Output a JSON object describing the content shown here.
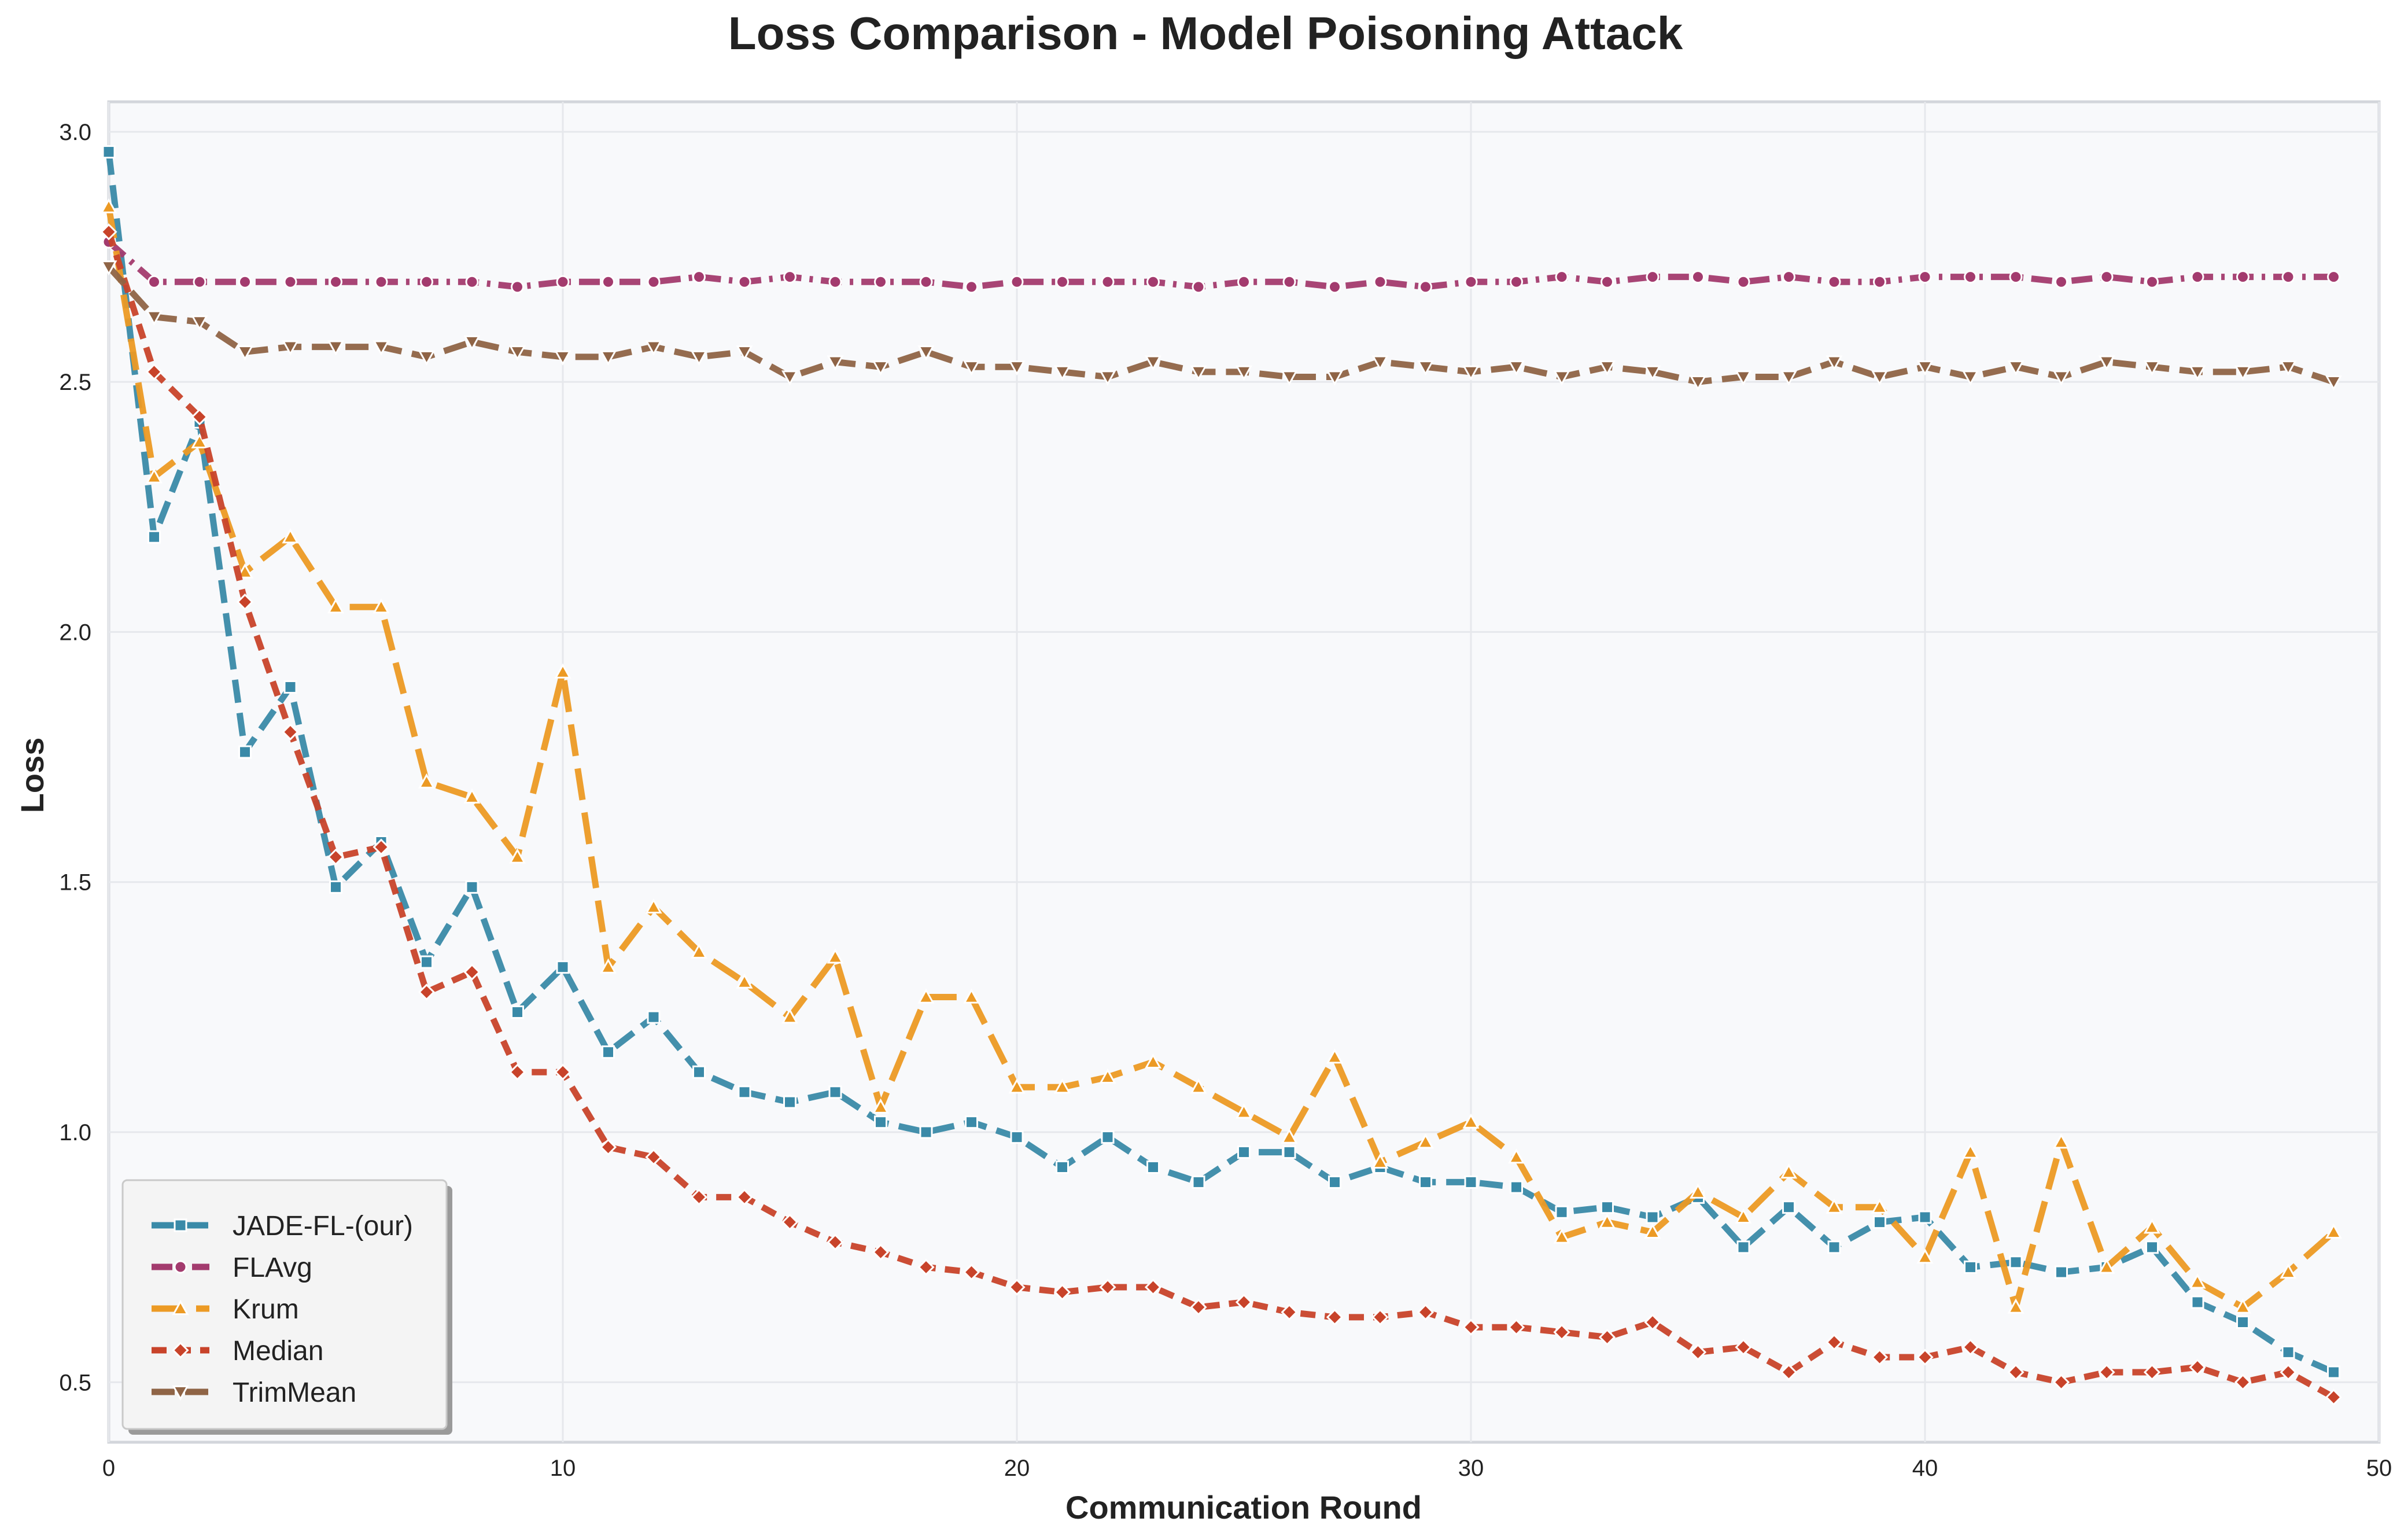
{
  "chart_data": {
    "type": "line",
    "title": "Loss Comparison - Model Poisoning Attack",
    "xlabel": "Communication Round",
    "ylabel": "Loss",
    "xlim": [
      0,
      50
    ],
    "ylim": [
      0.38,
      3.06
    ],
    "xticks": [
      0,
      10,
      20,
      30,
      40,
      50
    ],
    "yticks": [
      0.5,
      1.0,
      1.5,
      2.0,
      2.5,
      3.0
    ],
    "xtick_labels": [
      "0",
      "10",
      "20",
      "30",
      "40",
      "50"
    ],
    "ytick_labels": [
      "0.5",
      "1.0",
      "1.5",
      "2.0",
      "2.5",
      "3.0"
    ],
    "grid": true,
    "legend_position": "bottom-left",
    "x": [
      0,
      1,
      2,
      3,
      4,
      5,
      6,
      7,
      8,
      9,
      10,
      11,
      12,
      13,
      14,
      15,
      16,
      17,
      18,
      19,
      20,
      21,
      22,
      23,
      24,
      25,
      26,
      27,
      28,
      29,
      30,
      31,
      32,
      33,
      34,
      35,
      36,
      37,
      38,
      39,
      40,
      41,
      42,
      43,
      44,
      45,
      46,
      47,
      48,
      49
    ],
    "series": [
      {
        "name": "JADE-FL-(our)",
        "color": "#3a8aa8",
        "marker": "square",
        "dash": "dash",
        "values": [
          2.96,
          2.19,
          2.42,
          1.76,
          1.89,
          1.49,
          1.58,
          1.34,
          1.49,
          1.24,
          1.33,
          1.16,
          1.23,
          1.12,
          1.08,
          1.06,
          1.08,
          1.02,
          1.0,
          1.02,
          0.99,
          0.93,
          0.99,
          0.93,
          0.9,
          0.96,
          0.96,
          0.9,
          0.93,
          0.9,
          0.9,
          0.89,
          0.84,
          0.85,
          0.83,
          0.87,
          0.77,
          0.85,
          0.77,
          0.82,
          0.83,
          0.73,
          0.74,
          0.72,
          0.73,
          0.77,
          0.66,
          0.62,
          0.56,
          0.52
        ]
      },
      {
        "name": "FLAvg",
        "color": "#a33b6e",
        "marker": "circle",
        "dash": "dashdot",
        "values": [
          2.78,
          2.7,
          2.7,
          2.7,
          2.7,
          2.7,
          2.7,
          2.7,
          2.7,
          2.69,
          2.7,
          2.7,
          2.7,
          2.71,
          2.7,
          2.71,
          2.7,
          2.7,
          2.7,
          2.69,
          2.7,
          2.7,
          2.7,
          2.7,
          2.69,
          2.7,
          2.7,
          2.69,
          2.7,
          2.69,
          2.7,
          2.7,
          2.71,
          2.7,
          2.71,
          2.71,
          2.7,
          2.71,
          2.7,
          2.7,
          2.71,
          2.71,
          2.71,
          2.7,
          2.71,
          2.7,
          2.71,
          2.71,
          2.71,
          2.71
        ]
      },
      {
        "name": "Krum",
        "color": "#ec9a24",
        "marker": "triangle-up",
        "dash": "longdash",
        "values": [
          2.85,
          2.31,
          2.38,
          2.12,
          2.19,
          2.05,
          2.05,
          1.7,
          1.67,
          1.55,
          1.92,
          1.33,
          1.45,
          1.36,
          1.3,
          1.23,
          1.35,
          1.05,
          1.27,
          1.27,
          1.09,
          1.09,
          1.11,
          1.14,
          1.09,
          1.04,
          0.99,
          1.15,
          0.94,
          0.98,
          1.02,
          0.95,
          0.79,
          0.82,
          0.8,
          0.88,
          0.83,
          0.92,
          0.85,
          0.85,
          0.75,
          0.96,
          0.65,
          0.98,
          0.73,
          0.81,
          0.7,
          0.65,
          0.72,
          0.8
        ]
      },
      {
        "name": "Median",
        "color": "#c8432a",
        "marker": "diamond",
        "dash": "dot",
        "values": [
          2.8,
          2.52,
          2.43,
          2.06,
          1.8,
          1.55,
          1.57,
          1.28,
          1.32,
          1.12,
          1.12,
          0.97,
          0.95,
          0.87,
          0.87,
          0.82,
          0.78,
          0.76,
          0.73,
          0.72,
          0.69,
          0.68,
          0.69,
          0.69,
          0.65,
          0.66,
          0.64,
          0.63,
          0.63,
          0.64,
          0.61,
          0.61,
          0.6,
          0.59,
          0.62,
          0.56,
          0.57,
          0.52,
          0.58,
          0.55,
          0.55,
          0.57,
          0.52,
          0.5,
          0.52,
          0.52,
          0.53,
          0.5,
          0.52,
          0.47
        ]
      },
      {
        "name": "TrimMean",
        "color": "#8f6446",
        "marker": "triangle-down",
        "dash": "dash",
        "values": [
          2.73,
          2.63,
          2.62,
          2.56,
          2.57,
          2.57,
          2.57,
          2.55,
          2.58,
          2.56,
          2.55,
          2.55,
          2.57,
          2.55,
          2.56,
          2.51,
          2.54,
          2.53,
          2.56,
          2.53,
          2.53,
          2.52,
          2.51,
          2.54,
          2.52,
          2.52,
          2.51,
          2.51,
          2.54,
          2.53,
          2.52,
          2.53,
          2.51,
          2.53,
          2.52,
          2.5,
          2.51,
          2.51,
          2.54,
          2.51,
          2.53,
          2.51,
          2.53,
          2.51,
          2.54,
          2.53,
          2.52,
          2.52,
          2.53,
          2.5
        ]
      }
    ]
  }
}
